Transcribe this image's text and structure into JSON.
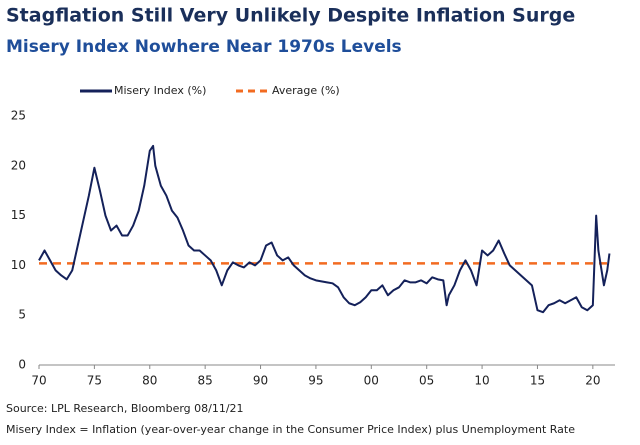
{
  "chart_data": {
    "type": "line",
    "title": "Stagflation Still Very Unlikely Despite Inflation Surge",
    "subtitle": "Misery Index Nowhere Near 1970s Levels",
    "source": "Source: LPL Research, Bloomberg  08/11/21",
    "note": "Misery Index = Inflation (year-over-year change in the Consumer Price Index) plus Unemployment Rate",
    "xlim": [
      1970,
      2022
    ],
    "xticks": [
      {
        "value": 1970,
        "label": "70"
      },
      {
        "value": 1975,
        "label": "75"
      },
      {
        "value": 1980,
        "label": "80"
      },
      {
        "value": 1985,
        "label": "85"
      },
      {
        "value": 1990,
        "label": "90"
      },
      {
        "value": 1995,
        "label": "95"
      },
      {
        "value": 2000,
        "label": "00"
      },
      {
        "value": 2005,
        "label": "05"
      },
      {
        "value": 2010,
        "label": "10"
      },
      {
        "value": 2015,
        "label": "15"
      },
      {
        "value": 2020,
        "label": "20"
      }
    ],
    "ylim": [
      0,
      25
    ],
    "yticks": [
      0,
      5,
      10,
      15,
      20,
      25
    ],
    "x": [
      1970.0,
      1970.5,
      1971.0,
      1971.5,
      1972.0,
      1972.5,
      1973.0,
      1973.5,
      1974.0,
      1974.5,
      1975.0,
      1975.5,
      1976.0,
      1976.5,
      1977.0,
      1977.5,
      1978.0,
      1978.5,
      1979.0,
      1979.5,
      1980.0,
      1980.3,
      1980.5,
      1981.0,
      1981.5,
      1982.0,
      1982.5,
      1983.0,
      1983.5,
      1984.0,
      1984.5,
      1985.0,
      1985.5,
      1986.0,
      1986.5,
      1987.0,
      1987.5,
      1988.0,
      1988.5,
      1989.0,
      1989.5,
      1990.0,
      1990.5,
      1991.0,
      1991.5,
      1992.0,
      1992.5,
      1993.0,
      1993.5,
      1994.0,
      1994.5,
      1995.0,
      1995.5,
      1996.0,
      1996.5,
      1997.0,
      1997.5,
      1998.0,
      1998.5,
      1999.0,
      1999.5,
      2000.0,
      2000.5,
      2001.0,
      2001.5,
      2002.0,
      2002.5,
      2003.0,
      2003.5,
      2004.0,
      2004.5,
      2005.0,
      2005.5,
      2006.0,
      2006.5,
      2006.8,
      2007.0,
      2007.5,
      2008.0,
      2008.5,
      2009.0,
      2009.5,
      2010.0,
      2010.5,
      2011.0,
      2011.5,
      2012.0,
      2012.5,
      2013.0,
      2013.5,
      2014.0,
      2014.5,
      2015.0,
      2015.5,
      2016.0,
      2016.5,
      2017.0,
      2017.5,
      2018.0,
      2018.5,
      2019.0,
      2019.5,
      2020.0,
      2020.3,
      2020.5,
      2021.0,
      2021.3,
      2021.5
    ],
    "series": [
      {
        "name": "Misery Index (%)",
        "color": "#14215a",
        "values": [
          10.5,
          11.5,
          10.5,
          9.5,
          9.0,
          8.6,
          9.5,
          12,
          14.5,
          17,
          19.8,
          17.5,
          15,
          13.5,
          14,
          13,
          13,
          14,
          15.5,
          18,
          21.5,
          22,
          20,
          18,
          17,
          15.5,
          14.8,
          13.5,
          12,
          11.5,
          11.5,
          11,
          10.5,
          9.5,
          8,
          9.5,
          10.3,
          10,
          9.8,
          10.3,
          10,
          10.5,
          12,
          12.3,
          11,
          10.5,
          10.8,
          10,
          9.5,
          9,
          8.7,
          8.5,
          8.4,
          8.3,
          8.2,
          7.8,
          6.8,
          6.2,
          6.0,
          6.3,
          6.8,
          7.5,
          7.5,
          8,
          7,
          7.5,
          7.8,
          8.5,
          8.3,
          8.3,
          8.5,
          8.2,
          8.8,
          8.6,
          8.5,
          6,
          7,
          8,
          9.5,
          10.5,
          9.5,
          8,
          11.5,
          11,
          11.5,
          12.5,
          11.2,
          10,
          9.5,
          9,
          8.5,
          8,
          5.5,
          5.3,
          6,
          6.2,
          6.5,
          6.2,
          6.5,
          6.8,
          5.8,
          5.5,
          6,
          15,
          11.5,
          8,
          9.5,
          11.2
        ]
      }
    ],
    "average": {
      "name": "Average (%)",
      "color": "#f26b21",
      "value": 10.2
    }
  }
}
